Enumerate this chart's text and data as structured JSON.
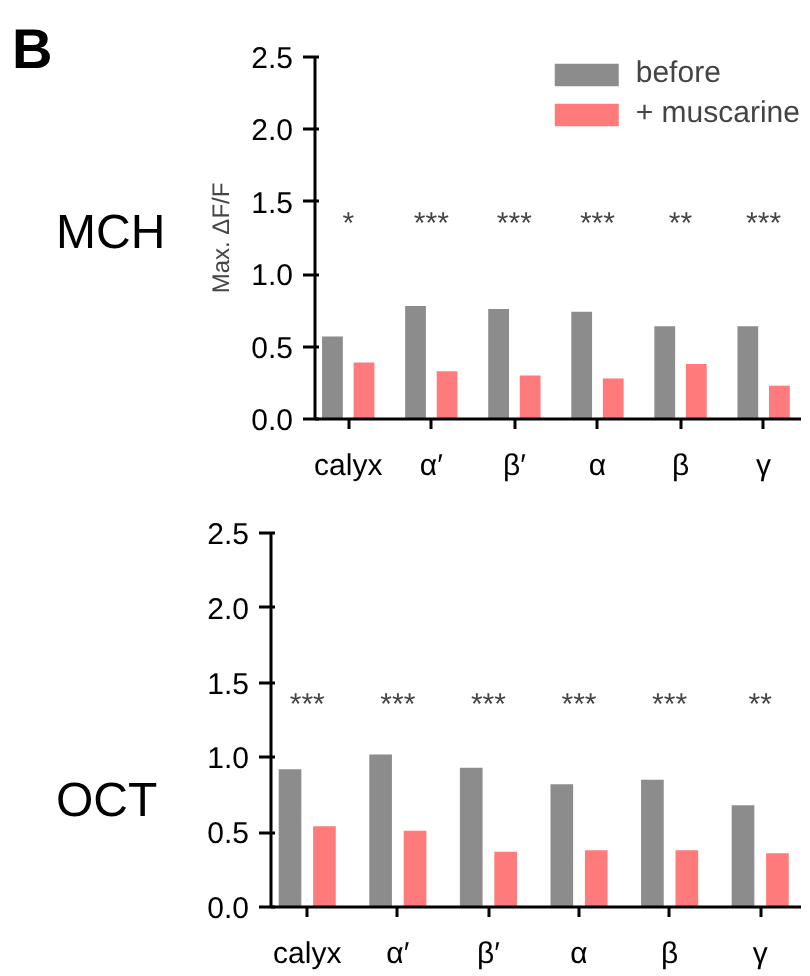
{
  "chart_data": [
    {
      "type": "bar",
      "title": "MCH",
      "ylabel": "Max. ΔF/F",
      "categories": [
        "calyx",
        "α′",
        "β′",
        "α",
        "β",
        "γ"
      ],
      "ylim": [
        0,
        2.5
      ],
      "yticks": [
        {
          "value": 0,
          "label": "0.0"
        },
        0.5,
        {
          "value": 1,
          "label": "1.0"
        },
        1.5,
        {
          "value": 2,
          "label": "2.0"
        },
        2.5
      ],
      "legend": "top right",
      "annotations": [
        "B",
        "*",
        "***",
        "***",
        "***",
        "**",
        "***"
      ],
      "series": [
        {
          "name": "before",
          "color": "#8c8c8c",
          "values": [
            0.57,
            0.78,
            0.76,
            0.74,
            0.64,
            0.64
          ]
        },
        {
          "name": "+ muscarine",
          "color": "#ff7b7b",
          "values": [
            0.39,
            0.33,
            0.3,
            0.28,
            0.38,
            0.23
          ]
        }
      ]
    },
    {
      "type": "bar",
      "title": "OCT",
      "categories": [
        "calyx",
        "α′",
        "β′",
        "α",
        "β",
        "γ"
      ],
      "ylim": [
        0,
        2.5
      ],
      "yticks": [
        {
          "value": 0,
          "label": "0.0"
        },
        0.5,
        {
          "value": 1,
          "label": "1.0"
        },
        1.5,
        {
          "value": 2,
          "label": "2.0"
        },
        2.5
      ],
      "annotations": [
        "***",
        "***",
        "***",
        "***",
        "***",
        "**"
      ],
      "series": [
        {
          "color": "#8c8c8c",
          "values": [
            0.92,
            1.02,
            0.93,
            0.82,
            0.85,
            0.68
          ]
        },
        {
          "color": "#ff7b7b",
          "values": [
            0.54,
            0.51,
            0.37,
            0.38,
            0.38,
            0.36
          ]
        }
      ]
    }
  ]
}
